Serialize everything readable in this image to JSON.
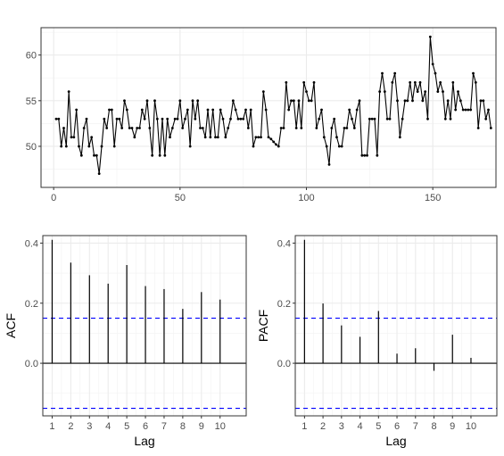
{
  "chart_data": [
    {
      "type": "line",
      "title": "",
      "xlabel": "",
      "ylabel": "",
      "xlim": [
        -5,
        175
      ],
      "ylim": [
        45.5,
        63
      ],
      "x_ticks": [
        0,
        50,
        100,
        150
      ],
      "y_ticks": [
        50,
        55,
        60
      ],
      "grid": true,
      "y": [
        53,
        53,
        50,
        52,
        50,
        56,
        51,
        51,
        54,
        50,
        49,
        52,
        53,
        50,
        51,
        49,
        49,
        47,
        50,
        53,
        52,
        54,
        54,
        50,
        53,
        53,
        52,
        55,
        54,
        52,
        52,
        51,
        52,
        52,
        54,
        53,
        55,
        52,
        49,
        55,
        53,
        49,
        53,
        49,
        53,
        51,
        52,
        53,
        53,
        55,
        52,
        53,
        54,
        50,
        55,
        53,
        55,
        52,
        52,
        51,
        54,
        51,
        54,
        51,
        51,
        54,
        53,
        51,
        52,
        53,
        55,
        54,
        53,
        53,
        53,
        54,
        52,
        54,
        50,
        51,
        51,
        51,
        56,
        54,
        51,
        50.8,
        50.5,
        50.2,
        50,
        52,
        52,
        57,
        54,
        55,
        55,
        52,
        55,
        52,
        57,
        56,
        55,
        55,
        57,
        52,
        53,
        54,
        51,
        50,
        48,
        52,
        53,
        51,
        50,
        50,
        52,
        52,
        54,
        53,
        52,
        54,
        55,
        49,
        49,
        49,
        53,
        53,
        53,
        49,
        56,
        58,
        56,
        53,
        53,
        57,
        58,
        55,
        51,
        53,
        55,
        55,
        57,
        55,
        57,
        56,
        57,
        55,
        56,
        53,
        62,
        59,
        58,
        56,
        57,
        56,
        53,
        55,
        53,
        57,
        54,
        56,
        55,
        54,
        54,
        54,
        54,
        58,
        57,
        52,
        55,
        55,
        53,
        54,
        52
      ]
    },
    {
      "type": "bar",
      "title": "",
      "xlabel": "Lag",
      "ylabel": "ACF",
      "categories": [
        "1",
        "2",
        "3",
        "4",
        "5",
        "6",
        "7",
        "8",
        "9",
        "10"
      ],
      "values": [
        0.411,
        0.335,
        0.293,
        0.265,
        0.327,
        0.257,
        0.247,
        0.181,
        0.237,
        0.212
      ],
      "y_ticks": [
        0.0,
        0.2,
        0.4
      ],
      "y_tick_labels": [
        "0.0",
        "0.2",
        "0.4"
      ],
      "ylim": [
        -0.175,
        0.425
      ],
      "confidence_bounds": [
        0.15,
        -0.15
      ],
      "grid": true
    },
    {
      "type": "bar",
      "title": "",
      "xlabel": "Lag",
      "ylabel": "PACF",
      "categories": [
        "1",
        "2",
        "3",
        "4",
        "5",
        "6",
        "7",
        "8",
        "9",
        "10"
      ],
      "values": [
        0.411,
        0.199,
        0.126,
        0.088,
        0.174,
        0.032,
        0.05,
        -0.025,
        0.095,
        0.018
      ],
      "y_ticks": [
        0.0,
        0.2,
        0.4
      ],
      "y_tick_labels": [
        "0.0",
        "0.2",
        "0.4"
      ],
      "ylim": [
        -0.175,
        0.425
      ],
      "confidence_bounds": [
        0.15,
        -0.15
      ],
      "grid": true
    }
  ]
}
